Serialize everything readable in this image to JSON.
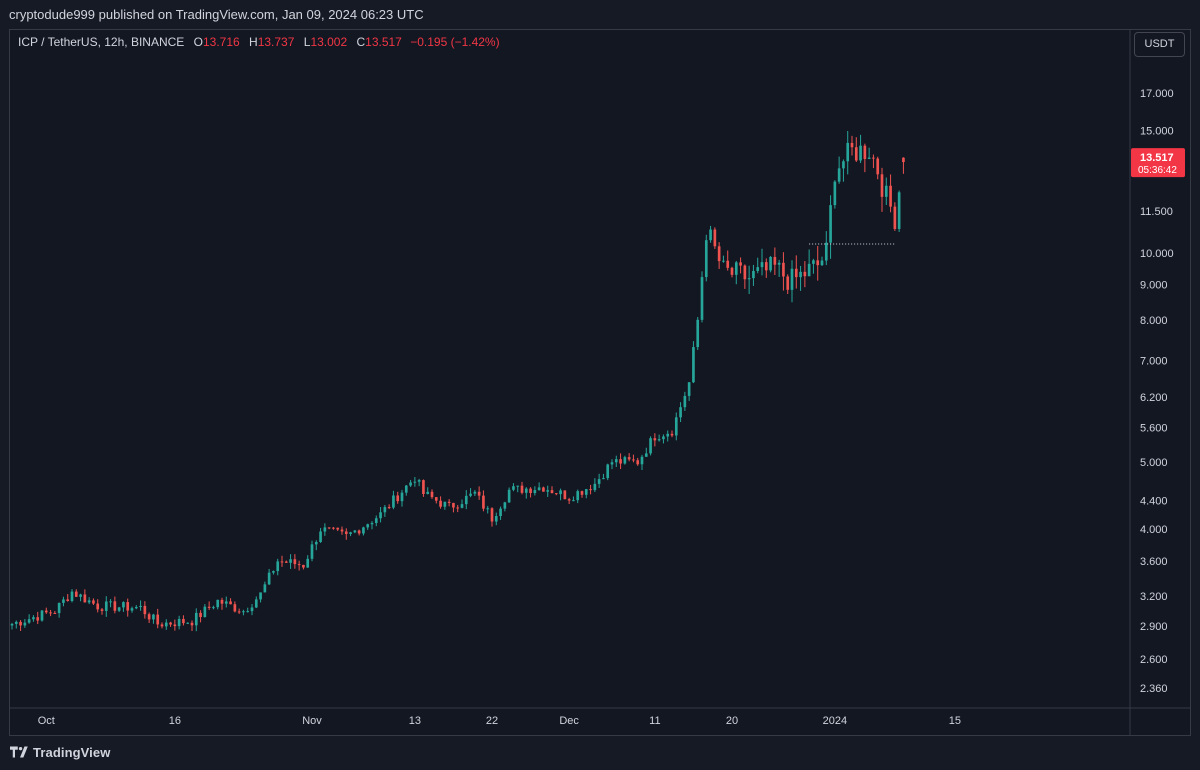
{
  "header": {
    "published_line": "cryptodude999 published on TradingView.com, Jan 09, 2024 06:23 UTC"
  },
  "legend": {
    "symbol": "ICP / TetherUS, 12h, BINANCE",
    "open_label": "O",
    "open": "13.716",
    "high_label": "H",
    "high": "13.737",
    "low_label": "L",
    "low": "13.002",
    "close_label": "C",
    "close": "13.517",
    "change": "−0.195 (−1.42%)"
  },
  "currency_button": "USDT",
  "price_marker": {
    "price": "13.517",
    "countdown": "05:36:42"
  },
  "footer": {
    "brand": "TradingView"
  },
  "colors": {
    "up": "#26a69a",
    "down": "#ef5350",
    "background": "#131722",
    "axis_text": "#d1d4dc",
    "price_marker": "#f23645"
  },
  "chart_data": {
    "type": "candlestick",
    "scale": "log",
    "symbol": "ICP / TetherUS",
    "interval": "12h",
    "exchange": "BINANCE",
    "y_ticks": [
      "2.360",
      "2.600",
      "2.900",
      "3.200",
      "3.600",
      "4.000",
      "4.400",
      "5.000",
      "5.600",
      "6.200",
      "7.000",
      "8.000",
      "9.000",
      "10.000",
      "11.500",
      "15.000",
      "17.000"
    ],
    "x_ticks": [
      "Oct",
      "16",
      "Nov",
      "13",
      "22",
      "Dec",
      "11",
      "20",
      "2024",
      "15"
    ],
    "support_line": 10.3,
    "anchors": [
      {
        "date": "2023-09-27",
        "price": 2.92
      },
      {
        "date": "2023-10-02",
        "price": 3.05
      },
      {
        "date": "2023-10-04",
        "price": 3.25
      },
      {
        "date": "2023-10-07",
        "price": 3.1
      },
      {
        "date": "2023-10-12",
        "price": 3.08
      },
      {
        "date": "2023-10-14",
        "price": 2.92
      },
      {
        "date": "2023-10-18",
        "price": 2.95
      },
      {
        "date": "2023-10-21",
        "price": 3.15
      },
      {
        "date": "2023-10-24",
        "price": 3.05
      },
      {
        "date": "2023-10-26",
        "price": 3.22
      },
      {
        "date": "2023-10-28",
        "price": 3.6
      },
      {
        "date": "2023-10-31",
        "price": 3.55
      },
      {
        "date": "2023-11-02",
        "price": 4.0
      },
      {
        "date": "2023-11-05",
        "price": 3.9
      },
      {
        "date": "2023-11-09",
        "price": 4.2
      },
      {
        "date": "2023-11-13",
        "price": 4.75
      },
      {
        "date": "2023-11-14",
        "price": 4.5
      },
      {
        "date": "2023-11-17",
        "price": 4.3
      },
      {
        "date": "2023-11-20",
        "price": 4.5
      },
      {
        "date": "2023-11-22",
        "price": 4.15
      },
      {
        "date": "2023-11-24",
        "price": 4.55
      },
      {
        "date": "2023-11-28",
        "price": 4.6
      },
      {
        "date": "2023-12-01",
        "price": 4.45
      },
      {
        "date": "2023-12-04",
        "price": 4.65
      },
      {
        "date": "2023-12-06",
        "price": 5.0
      },
      {
        "date": "2023-12-09",
        "price": 5.0
      },
      {
        "date": "2023-12-11",
        "price": 5.45
      },
      {
        "date": "2023-12-13",
        "price": 5.55
      },
      {
        "date": "2023-12-15",
        "price": 6.5
      },
      {
        "date": "2023-12-16",
        "price": 8.0
      },
      {
        "date": "2023-12-17",
        "price": 10.8
      },
      {
        "date": "2023-12-19",
        "price": 9.4
      },
      {
        "date": "2023-12-22",
        "price": 9.2
      },
      {
        "date": "2023-12-25",
        "price": 9.5
      },
      {
        "date": "2023-12-27",
        "price": 9.1
      },
      {
        "date": "2023-12-30",
        "price": 9.6
      },
      {
        "date": "2023-12-31",
        "price": 10.0
      },
      {
        "date": "2024-01-01",
        "price": 13.2
      },
      {
        "date": "2024-01-03",
        "price": 14.0
      },
      {
        "date": "2024-01-05",
        "price": 14.1
      },
      {
        "date": "2024-01-06",
        "price": 13.2
      },
      {
        "date": "2024-01-07",
        "price": 12.0
      },
      {
        "date": "2024-01-08",
        "price": 11.3
      },
      {
        "date": "2024-01-09",
        "price": 13.5
      }
    ]
  }
}
